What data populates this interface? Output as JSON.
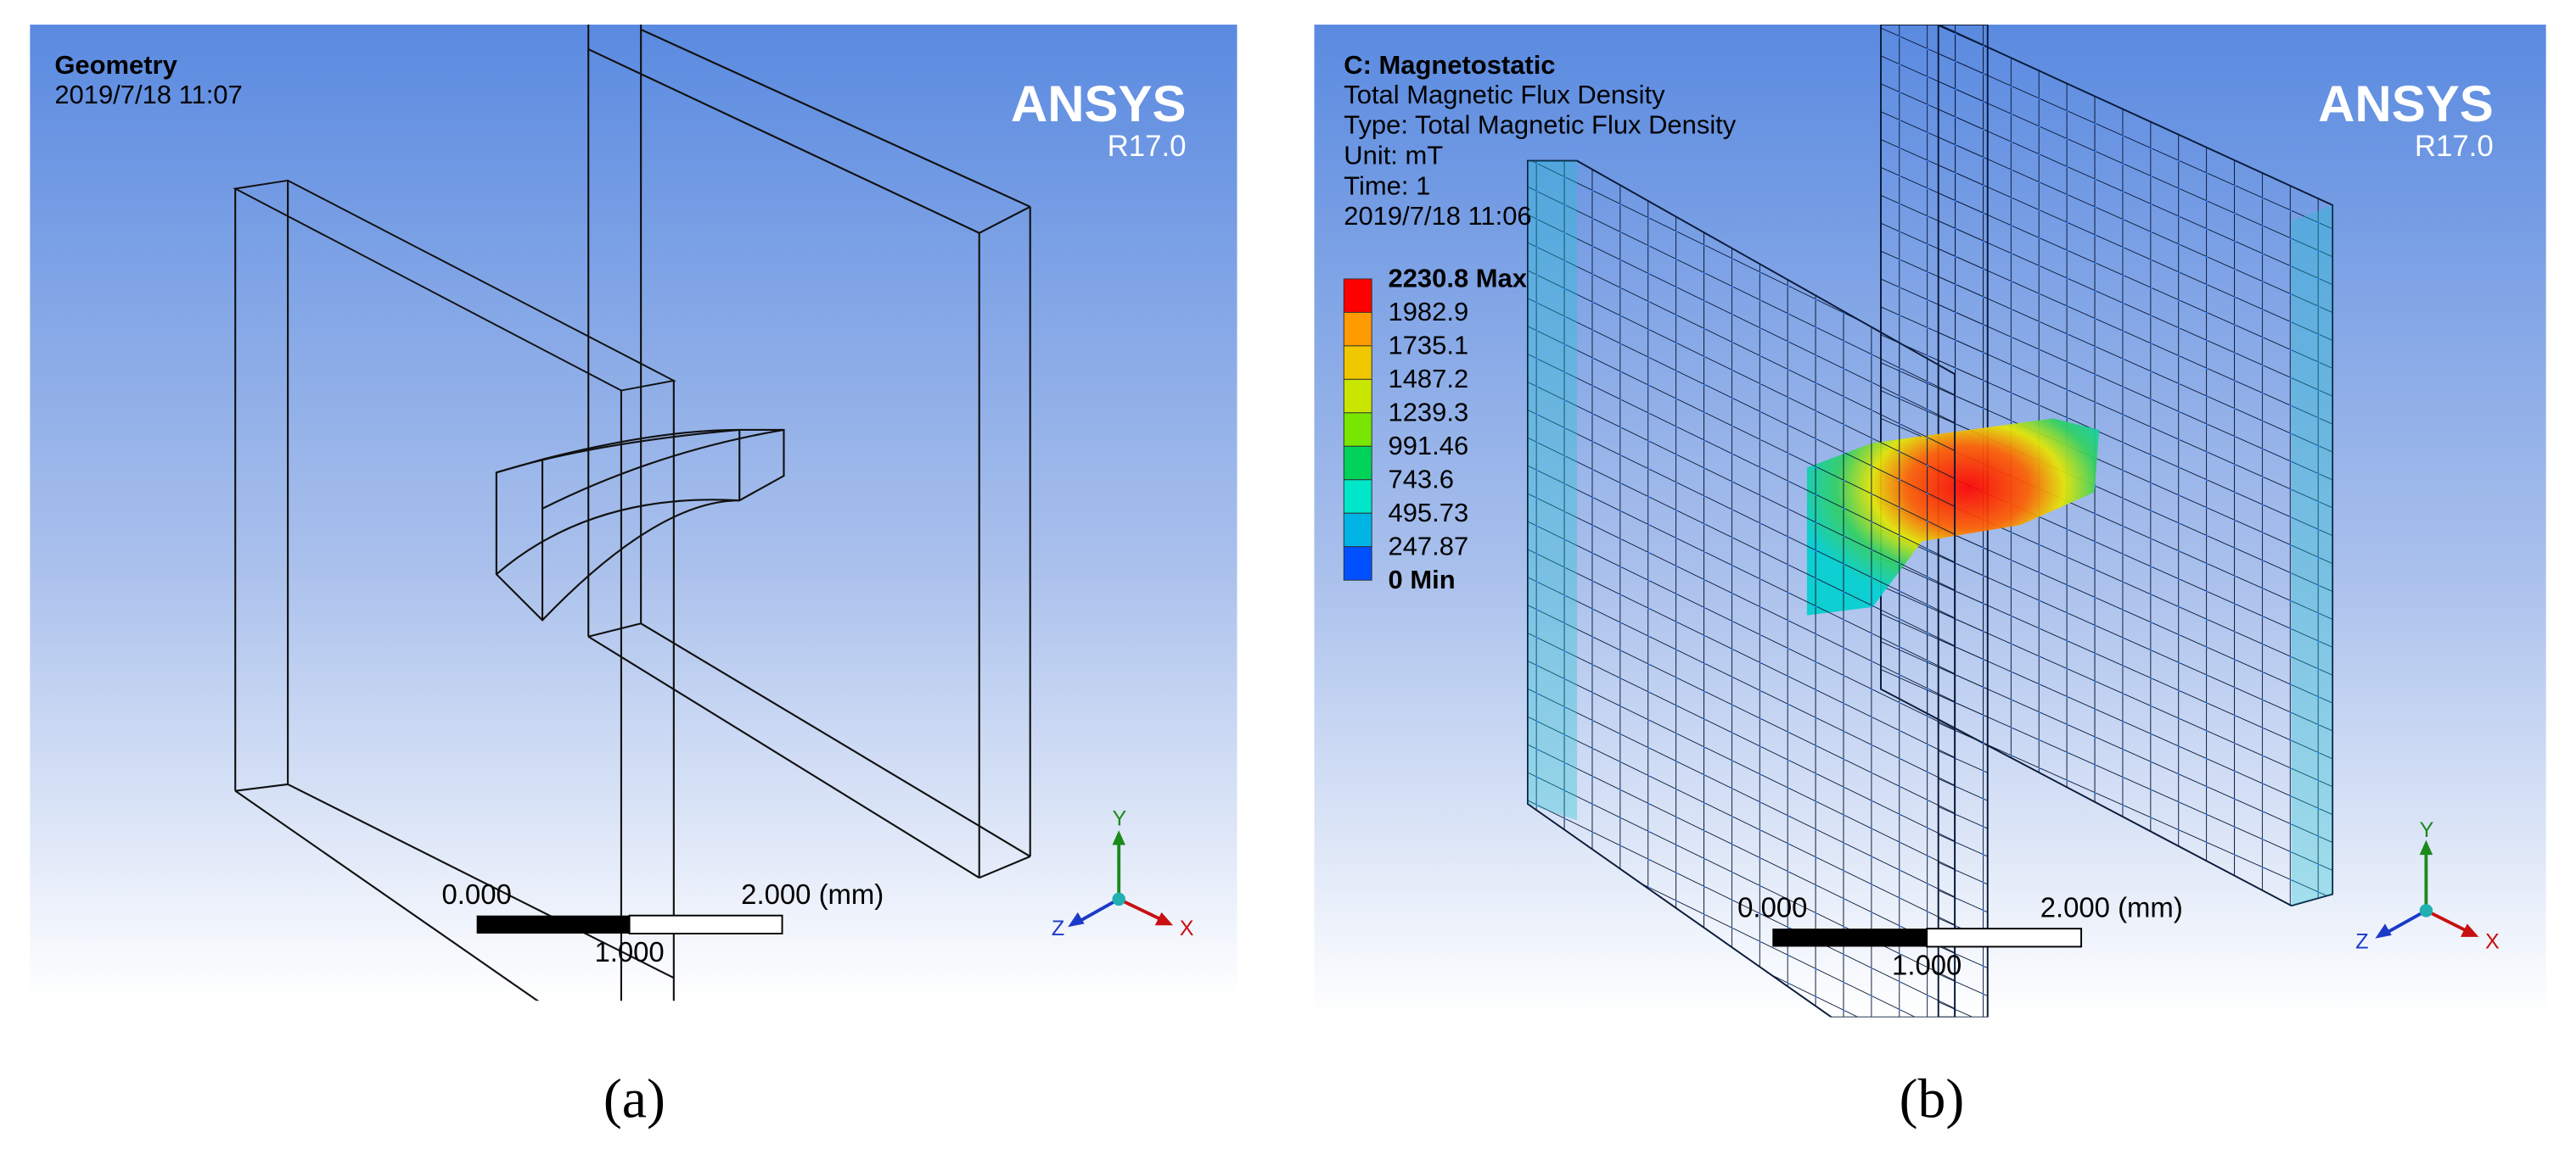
{
  "panels": [
    {
      "header": {
        "title": "Geometry",
        "lines": [
          "2019/7/18 11:07"
        ]
      },
      "brand": {
        "name": "ANSYS",
        "version": "R17.0"
      },
      "scale_bar": {
        "start": "0.000",
        "mid": "1.000",
        "end": "2.000 (mm)"
      },
      "triad": {
        "y": "Y",
        "x": "X",
        "z": "Z"
      },
      "caption": "(a)"
    },
    {
      "header": {
        "title": "C: Magnetostatic",
        "lines": [
          "Total Magnetic Flux Density",
          "Type: Total Magnetic Flux Density",
          "Unit: mT",
          "Time: 1",
          "2019/7/18 11:06"
        ]
      },
      "brand": {
        "name": "ANSYS",
        "version": "R17.0"
      },
      "legend": {
        "levels": [
          "2230.8 Max",
          "1982.9",
          "1735.1",
          "1487.2",
          "1239.3",
          "991.46",
          "743.6",
          "495.73",
          "247.87",
          "0 Min"
        ]
      },
      "scale_bar": {
        "start": "0.000",
        "mid": "1.000",
        "end": "2.000 (mm)"
      },
      "triad": {
        "y": "Y",
        "x": "X",
        "z": "Z"
      },
      "caption": "(b)"
    }
  ]
}
